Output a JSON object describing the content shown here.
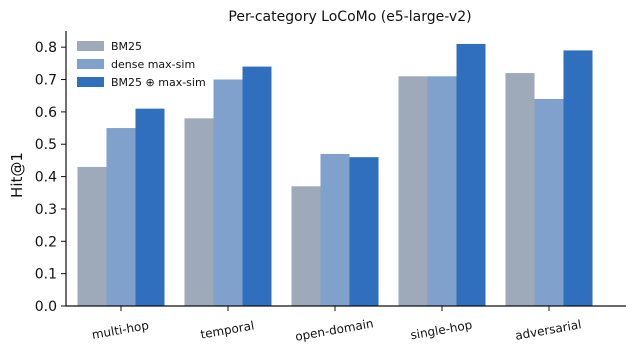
{
  "chart_data": {
    "type": "bar",
    "title": "Per-category LoCoMo (e5-large-v2)",
    "xlabel": "",
    "ylabel": "Hit@1",
    "ylim": [
      0,
      0.85
    ],
    "yticks": [
      0.0,
      0.1,
      0.2,
      0.3,
      0.4,
      0.5,
      0.6,
      0.7,
      0.8
    ],
    "ytick_labels": [
      "0.0",
      "0.1",
      "0.2",
      "0.3",
      "0.4",
      "0.5",
      "0.6",
      "0.7",
      "0.8"
    ],
    "categories": [
      "multi-hop",
      "temporal",
      "open-domain",
      "single-hop",
      "adversarial"
    ],
    "category_label_rotation": "slanted",
    "grid": false,
    "legend_position": "top-left",
    "series": [
      {
        "name": "BM25",
        "color": "#9ea9b9",
        "values": [
          0.43,
          0.58,
          0.37,
          0.71,
          0.72
        ]
      },
      {
        "name": "dense max-sim",
        "color": "#7fa1cc",
        "values": [
          0.55,
          0.7,
          0.47,
          0.71,
          0.64
        ]
      },
      {
        "name": "BM25 ⊕ max-sim",
        "color": "#2f6fbe",
        "values": [
          0.61,
          0.74,
          0.46,
          0.81,
          0.79
        ]
      }
    ]
  }
}
